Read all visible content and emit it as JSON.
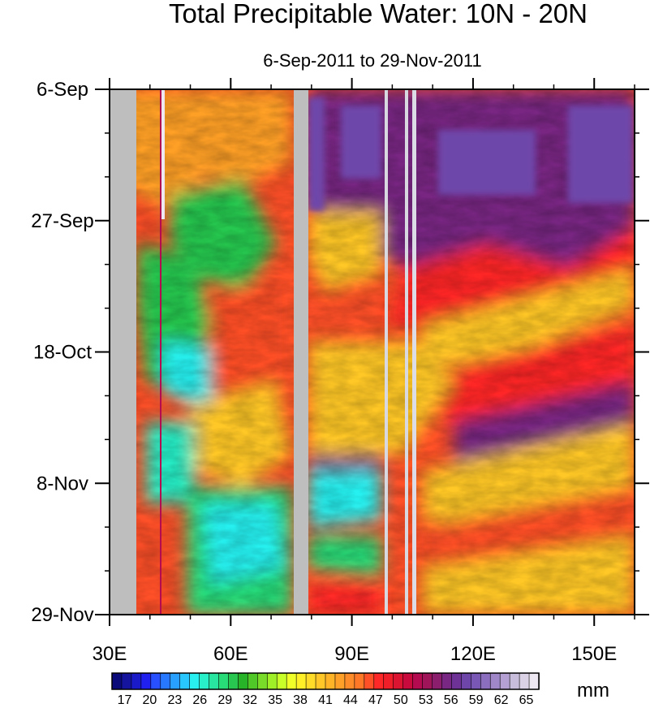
{
  "chart_data": {
    "type": "heatmap",
    "title": "Total Precipitable Water: 10N - 20N",
    "subtitle": "6-Sep-2011 to 29-Nov-2011",
    "x_ticks": [
      {
        "value": 30,
        "label": "30E"
      },
      {
        "value": 60,
        "label": "60E"
      },
      {
        "value": 90,
        "label": "90E"
      },
      {
        "value": 120,
        "label": "120E"
      },
      {
        "value": 150,
        "label": "150E"
      }
    ],
    "xlim": [
      30,
      160
    ],
    "y_ticks": [
      {
        "value": 0,
        "label": "6-Sep"
      },
      {
        "value": 21,
        "label": "27-Sep"
      },
      {
        "value": 42,
        "label": "18-Oct"
      },
      {
        "value": 63,
        "label": "8-Nov"
      },
      {
        "value": 84,
        "label": "29-Nov"
      }
    ],
    "ylim": [
      0,
      84
    ],
    "y_minor_step": 7,
    "x_minor_step": 10,
    "colorbar": {
      "labels": [
        "17",
        "20",
        "23",
        "26",
        "29",
        "32",
        "35",
        "38",
        "41",
        "44",
        "47",
        "50",
        "53",
        "56",
        "59",
        "62",
        "65"
      ],
      "min": 15.5,
      "max": 66.5,
      "step": 1.5,
      "unit": "mm",
      "colors": [
        "#0a0a7a",
        "#14149e",
        "#1a1ac8",
        "#2020f0",
        "#2850ff",
        "#2878ff",
        "#28a0ff",
        "#28c8ff",
        "#28f0f0",
        "#28f0c8",
        "#28e6a0",
        "#28dc78",
        "#28c850",
        "#28b428",
        "#50c828",
        "#78dc28",
        "#a0f028",
        "#c8ff28",
        "#f0ff28",
        "#fff028",
        "#ffdc28",
        "#ffc828",
        "#ffb428",
        "#ffa028",
        "#ff8c28",
        "#ff7828",
        "#ff5028",
        "#ff2828",
        "#f01e28",
        "#dc1432",
        "#c80a3c",
        "#b40a50",
        "#a0145a",
        "#8c1e6e",
        "#782882",
        "#6e3296",
        "#6e46aa",
        "#7858b4",
        "#8c6ebe",
        "#a088c8",
        "#b4a0d2",
        "#c8bedc",
        "#dcd2e6",
        "#eee8f2"
      ],
      "panel_colors": [
        "#000080",
        "#0000cd",
        "#1e64ff",
        "#28c8ff",
        "#28f0c8",
        "#28c850",
        "#a0f028",
        "#fff028",
        "#ffc828",
        "#ff8c28",
        "#ff2828",
        "#b40a50",
        "#782882",
        "#6e46aa",
        "#b4a0d2",
        "#ffffff"
      ]
    },
    "missing_color": "#bebebe"
  }
}
